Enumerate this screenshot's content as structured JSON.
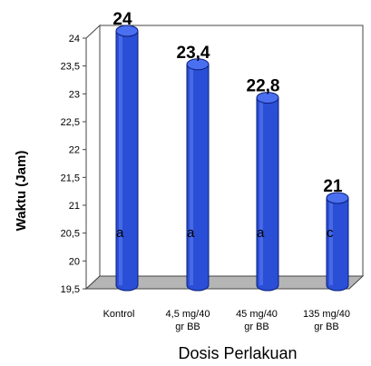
{
  "chart_data": {
    "type": "bar",
    "title": "",
    "xlabel": "Dosis Perlakuan",
    "ylabel": "Waktu (Jam)",
    "ylim": [
      19.5,
      24
    ],
    "yticks": [
      "19,5",
      "20",
      "20,5",
      "21",
      "21,5",
      "22",
      "22,5",
      "23",
      "23,5",
      "24"
    ],
    "categories": [
      [
        "Kontrol"
      ],
      [
        "4,5 mg/40",
        "gr BB"
      ],
      [
        "45 mg/40",
        "gr BB"
      ],
      [
        "135 mg/40",
        "gr BB"
      ]
    ],
    "values": [
      24,
      23.4,
      22.8,
      21
    ],
    "data_labels": [
      "24",
      "23,4",
      "22,8",
      "21"
    ],
    "significance": [
      "a",
      "a",
      "a",
      "c"
    ],
    "bar_color": "#2a4fd6",
    "style": "3d-cylinder",
    "grid": false
  }
}
